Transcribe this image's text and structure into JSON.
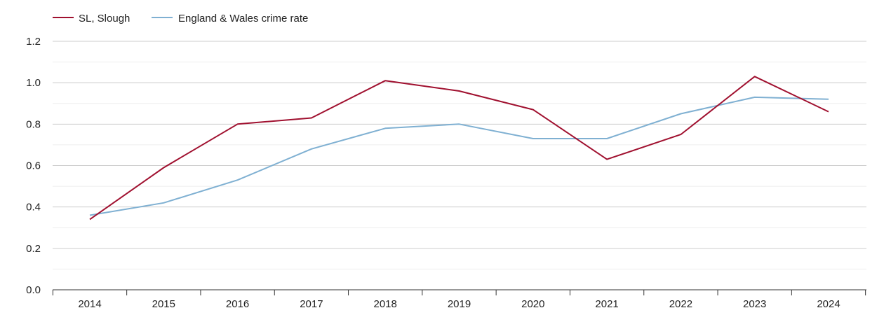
{
  "chart_data": {
    "type": "line",
    "title": "",
    "xlabel": "",
    "ylabel": "",
    "categories": [
      "2014",
      "2015",
      "2016",
      "2017",
      "2018",
      "2019",
      "2020",
      "2021",
      "2022",
      "2023",
      "2024"
    ],
    "ylim": [
      0,
      1.2
    ],
    "yticks": [
      "0.0",
      "0.2",
      "0.4",
      "0.6",
      "0.8",
      "1.0",
      "1.2"
    ],
    "legend_position": "top-left",
    "grid": true,
    "series": [
      {
        "name": "SL, Slough",
        "color": "#a0102f",
        "values": [
          0.34,
          0.59,
          0.8,
          0.83,
          1.01,
          0.96,
          0.87,
          0.63,
          0.75,
          1.03,
          0.86
        ]
      },
      {
        "name": "England & Wales crime rate",
        "color": "#7fb0d2",
        "values": [
          0.36,
          0.42,
          0.53,
          0.68,
          0.78,
          0.8,
          0.73,
          0.73,
          0.85,
          0.93,
          0.92
        ]
      }
    ]
  }
}
